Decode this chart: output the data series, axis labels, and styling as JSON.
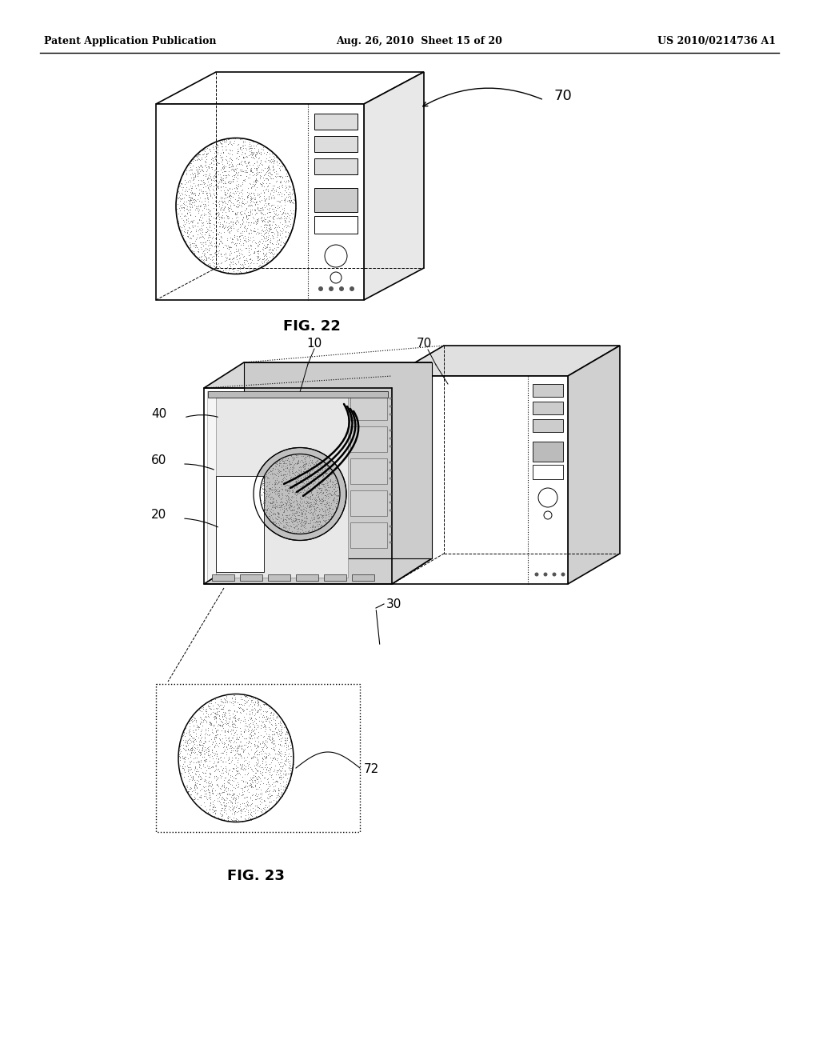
{
  "background_color": "#ffffff",
  "header_left": "Patent Application Publication",
  "header_mid": "Aug. 26, 2010  Sheet 15 of 20",
  "header_right": "US 2010/0214736 A1",
  "fig22_label": "FIG. 22",
  "fig23_label": "FIG. 23",
  "label_70_fig22": "70",
  "label_10": "10",
  "label_70_fig23": "70",
  "label_40": "40",
  "label_60": "60",
  "label_20": "20",
  "label_30": "30",
  "label_72": "72",
  "line_color": "#000000",
  "lw_main": 1.2,
  "lw_thin": 0.7,
  "lw_dotted": 0.6,
  "font_header": 9,
  "font_label": 11,
  "font_fig": 13
}
